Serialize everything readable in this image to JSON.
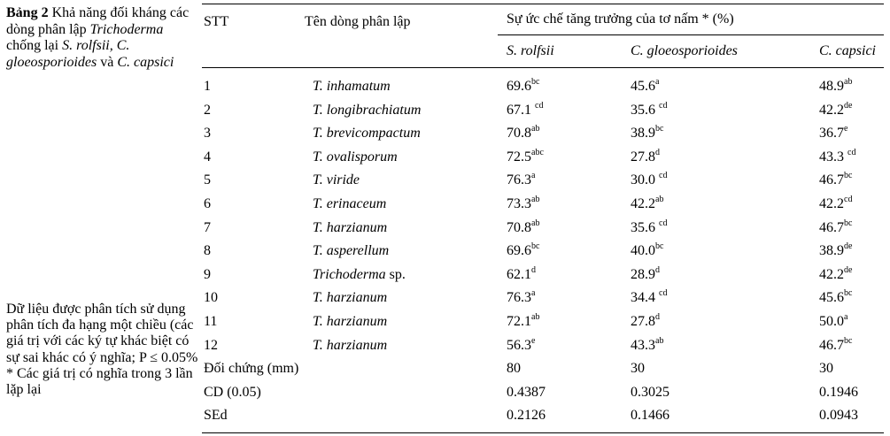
{
  "caption": {
    "label": "Bảng 2",
    "text_1": " Khả năng đối kháng các dòng phân lập ",
    "genus": "Trichoderma",
    "text_2": "  chống lại ",
    "pathogens": "S. rolfsii, C. gloeosporioides",
    "text_3": " và ",
    "pathogen_last": "C. capsici"
  },
  "note": {
    "line1": "Dữ liệu được phân tích sử dụng phân tích đa hạng một chiều (các giá trị với các ký tự khác biệt có sự sai khác có ý nghĩa; P ≤  0.05%",
    "line2": "* Các giá trị có nghĩa trong 3 lần lặp lại"
  },
  "table": {
    "headers": {
      "stt": "STT",
      "isolate": "Tên dòng phân lập",
      "group": "Sự ức chế tăng trưởng của tơ nấm * (%)",
      "col1": "S. rolfsii",
      "col2": "C. gloeosporioides",
      "col3": "C. capsici"
    },
    "rows": [
      {
        "stt": "1",
        "name": "T. inhamatum",
        "suffix": "",
        "v1": "69.6",
        "s1": "bc",
        "v2": "45.6",
        "s2": "a",
        "v3": "48.9",
        "s3": "ab"
      },
      {
        "stt": "2",
        "name": "T. longibrachiatum",
        "suffix": "",
        "v1": "67.1 ",
        "s1": "cd",
        "v2": "35.6 ",
        "s2": "cd",
        "v3": "42.2",
        "s3": "de"
      },
      {
        "stt": "3",
        "name": "T. brevicompactum",
        "suffix": "",
        "v1": "70.8",
        "s1": "ab",
        "v2": "38.9",
        "s2": "bc",
        "v3": "36.7",
        "s3": "e"
      },
      {
        "stt": "4",
        "name": "T. ovalisporum",
        "suffix": "",
        "v1": "72.5",
        "s1": "abc",
        "v2": "27.8",
        "s2": "d",
        "v3": "43.3 ",
        "s3": "cd"
      },
      {
        "stt": "5",
        "name": "T. viride",
        "suffix": "",
        "v1": "76.3",
        "s1": "a",
        "v2": "30.0 ",
        "s2": "cd",
        "v3": "46.7",
        "s3": "bc"
      },
      {
        "stt": "6",
        "name": "T. erinaceum",
        "suffix": "",
        "v1": "73.3",
        "s1": "ab",
        "v2": "42.2",
        "s2": "ab",
        "v3": "42.2",
        "s3": "cd"
      },
      {
        "stt": "7",
        "name": "T. harzianum",
        "suffix": "",
        "v1": "70.8",
        "s1": "ab",
        "v2": "35.6 ",
        "s2": "cd",
        "v3": "46.7",
        "s3": "bc"
      },
      {
        "stt": "8",
        "name": "T. asperellum",
        "suffix": "",
        "v1": "69.6",
        "s1": "bc",
        "v2": "40.0",
        "s2": "bc",
        "v3": "38.9",
        "s3": "de"
      },
      {
        "stt": "9",
        "name": "Trichoderma",
        "suffix": " sp.",
        "v1": "62.1",
        "s1": "d",
        "v2": "28.9",
        "s2": "d",
        "v3": "42.2",
        "s3": "de"
      },
      {
        "stt": "10",
        "name": "T. harzianum",
        "suffix": "",
        "v1": "76.3",
        "s1": "a",
        "v2": "34.4 ",
        "s2": "cd",
        "v3": "45.6",
        "s3": "bc"
      },
      {
        "stt": "11",
        "name": "T. harzianum",
        "suffix": "",
        "v1": "72.1",
        "s1": "ab",
        "v2": "27.8",
        "s2": "d",
        "v3": "50.0",
        "s3": "a"
      },
      {
        "stt": "12",
        "name": "T. harzianum",
        "suffix": "",
        "v1": "56.3",
        "s1": "e",
        "v2": "43.3",
        "s2": "ab",
        "v3": "46.7",
        "s3": "bc"
      }
    ],
    "footer": [
      {
        "label": "Đối chứng (mm)",
        "v1": "80",
        "v2": "30",
        "v3": "30"
      },
      {
        "label": "CD (0.05)",
        "v1": "0.4387",
        "v2": "0.3025",
        "v3": "0.1946"
      },
      {
        "label": "SEd",
        "v1": "0.2126",
        "v2": "0.1466",
        "v3": "0.0943"
      }
    ]
  }
}
